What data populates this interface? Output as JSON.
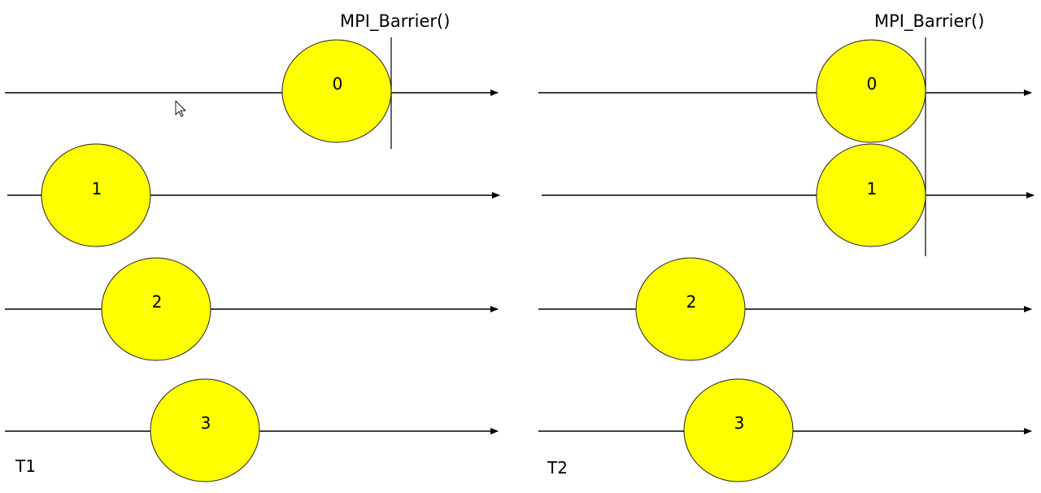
{
  "colors": {
    "process_fill": "#ffff00",
    "line": "#000000"
  },
  "panels": [
    {
      "label": "T1",
      "barrier_label": "MPI_Barrier()",
      "processes": [
        {
          "rank": "0"
        },
        {
          "rank": "1"
        },
        {
          "rank": "2"
        },
        {
          "rank": "3"
        }
      ]
    },
    {
      "label": "T2",
      "barrier_label": "MPI_Barrier()",
      "processes": [
        {
          "rank": "0"
        },
        {
          "rank": "1"
        },
        {
          "rank": "2"
        },
        {
          "rank": "3"
        }
      ]
    }
  ],
  "cursor_icon": "mouse-pointer-icon"
}
